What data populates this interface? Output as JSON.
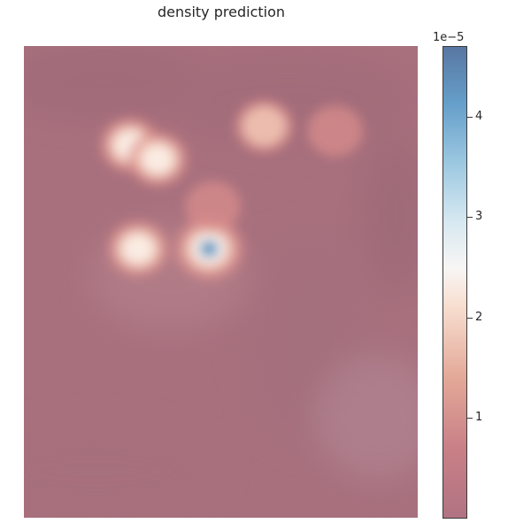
{
  "title": "density prediction",
  "chart_data": {
    "type": "heatmap",
    "title": "density prediction",
    "colormap": "RdBu (alpha overlay on photo)",
    "colorbar": {
      "min": 0,
      "max": 4.7e-05,
      "scale_label": "1e−5",
      "ticks": [
        {
          "value": 1e-05,
          "label": "1"
        },
        {
          "value": 2e-05,
          "label": "2"
        },
        {
          "value": 3e-05,
          "label": "3"
        },
        {
          "value": 4e-05,
          "label": "4"
        }
      ]
    },
    "hotspots": [
      {
        "name": "upper-left-cluster-a",
        "x": 0.27,
        "y": 0.21,
        "peak": 2.3e-05
      },
      {
        "name": "upper-left-cluster-b",
        "x": 0.34,
        "y": 0.24,
        "peak": 2.2e-05
      },
      {
        "name": "upper-center",
        "x": 0.61,
        "y": 0.17,
        "peak": 1.8e-05
      },
      {
        "name": "upper-right",
        "x": 0.79,
        "y": 0.18,
        "peak": 1.2e-05
      },
      {
        "name": "left-mid",
        "x": 0.29,
        "y": 0.43,
        "peak": 2.6e-05
      },
      {
        "name": "center-peak",
        "x": 0.47,
        "y": 0.43,
        "peak": 4.5e-05
      },
      {
        "name": "faint-mid",
        "x": 0.48,
        "y": 0.34,
        "peak": 1.2e-05
      }
    ]
  }
}
